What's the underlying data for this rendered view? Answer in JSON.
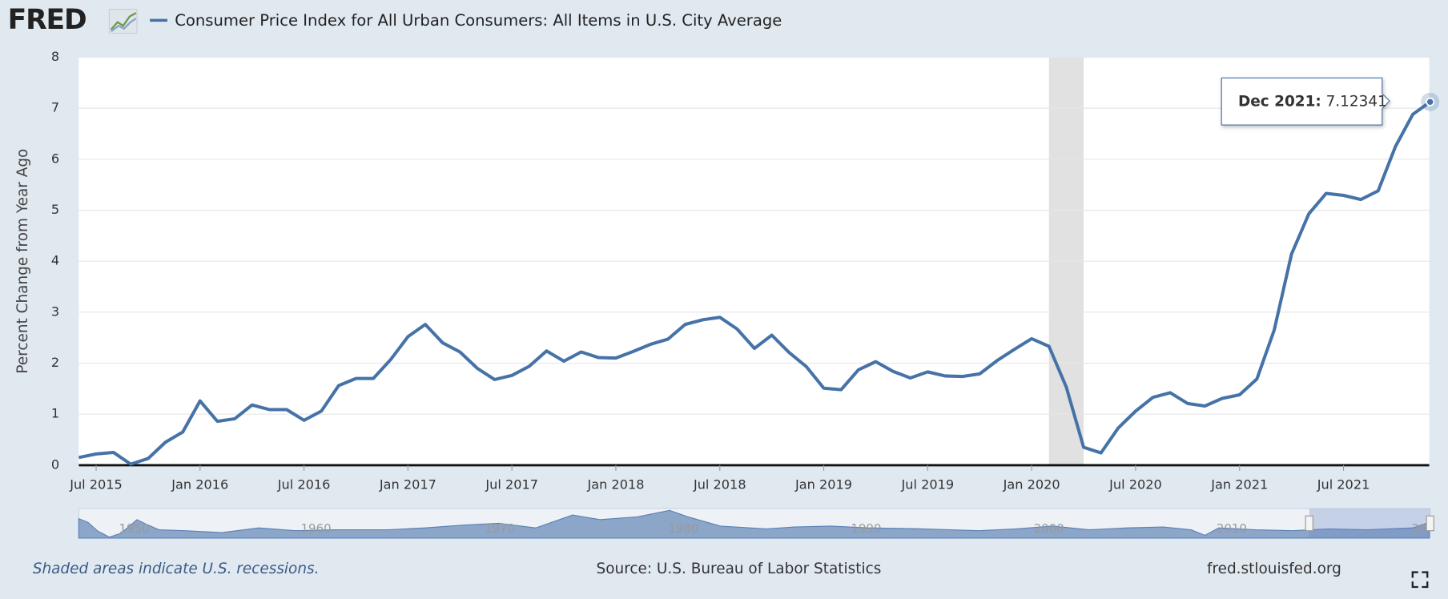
{
  "chart_data": {
    "type": "line",
    "title": "Consumer Price Index for All Urban Consumers: All Items in U.S. City Average",
    "y_label": "Percent Change from Year Ago",
    "logo": "FRED",
    "note": "Shaded areas indicate U.S. recessions.",
    "source": "Source: U.S. Bureau of Labor Statistics",
    "site": "fred.stlouisfed.org",
    "tooltip_label": "Dec 2021:",
    "x": [
      "2015-06",
      "2015-07",
      "2015-08",
      "2015-09",
      "2015-10",
      "2015-11",
      "2015-12",
      "2016-01",
      "2016-02",
      "2016-03",
      "2016-04",
      "2016-05",
      "2016-06",
      "2016-07",
      "2016-08",
      "2016-09",
      "2016-10",
      "2016-11",
      "2016-12",
      "2017-01",
      "2017-02",
      "2017-03",
      "2017-04",
      "2017-05",
      "2017-06",
      "2017-07",
      "2017-08",
      "2017-09",
      "2017-10",
      "2017-11",
      "2017-12",
      "2018-01",
      "2018-02",
      "2018-03",
      "2018-04",
      "2018-05",
      "2018-06",
      "2018-07",
      "2018-08",
      "2018-09",
      "2018-10",
      "2018-11",
      "2018-12",
      "2019-01",
      "2019-02",
      "2019-03",
      "2019-04",
      "2019-05",
      "2019-06",
      "2019-07",
      "2019-08",
      "2019-09",
      "2019-10",
      "2019-11",
      "2019-12",
      "2020-01",
      "2020-02",
      "2020-03",
      "2020-04",
      "2020-05",
      "2020-06",
      "2020-07",
      "2020-08",
      "2020-09",
      "2020-10",
      "2020-11",
      "2020-12",
      "2021-01",
      "2021-02",
      "2021-03",
      "2021-04",
      "2021-05",
      "2021-06",
      "2021-07",
      "2021-08",
      "2021-09",
      "2021-10",
      "2021-11",
      "2021-12"
    ],
    "series": [
      {
        "name": "Consumer Price Index for All Urban Consumers: All Items in U.S. City Average",
        "color": "#4572a7",
        "values": [
          0.15,
          0.22,
          0.25,
          0.02,
          0.13,
          0.45,
          0.65,
          1.26,
          0.86,
          0.91,
          1.18,
          1.09,
          1.09,
          0.88,
          1.06,
          1.56,
          1.7,
          1.7,
          2.07,
          2.52,
          2.76,
          2.4,
          2.22,
          1.9,
          1.68,
          1.76,
          1.94,
          2.24,
          2.04,
          2.22,
          2.11,
          2.1,
          2.23,
          2.37,
          2.47,
          2.76,
          2.85,
          2.9,
          2.67,
          2.29,
          2.55,
          2.21,
          1.93,
          1.51,
          1.48,
          1.87,
          2.03,
          1.84,
          1.71,
          1.83,
          1.75,
          1.74,
          1.79,
          2.05,
          2.27,
          2.48,
          2.33,
          1.53,
          0.35,
          0.24,
          0.73,
          1.06,
          1.33,
          1.42,
          1.21,
          1.16,
          1.31,
          1.38,
          1.69,
          2.65,
          4.14,
          4.93,
          5.33,
          5.29,
          5.21,
          5.38,
          6.25,
          6.88,
          7.12341
        ]
      }
    ],
    "xlim": [
      "2015-06",
      "2021-12"
    ],
    "xticks": [
      {
        "value": "2015-07",
        "label": "Jul 2015"
      },
      {
        "value": "2016-01",
        "label": "Jan 2016"
      },
      {
        "value": "2016-07",
        "label": "Jul 2016"
      },
      {
        "value": "2017-01",
        "label": "Jan 2017"
      },
      {
        "value": "2017-07",
        "label": "Jul 2017"
      },
      {
        "value": "2018-01",
        "label": "Jan 2018"
      },
      {
        "value": "2018-07",
        "label": "Jul 2018"
      },
      {
        "value": "2019-01",
        "label": "Jan 2019"
      },
      {
        "value": "2019-07",
        "label": "Jul 2019"
      },
      {
        "value": "2020-01",
        "label": "Jan 2020"
      },
      {
        "value": "2020-07",
        "label": "Jul 2020"
      },
      {
        "value": "2021-01",
        "label": "Jan 2021"
      },
      {
        "value": "2021-07",
        "label": "Jul 2021"
      }
    ],
    "ylim": [
      0,
      8
    ],
    "yticks": [
      0,
      1,
      2,
      3,
      4,
      5,
      6,
      7,
      8
    ],
    "grid": true,
    "recessions": [
      {
        "start": "2020-02",
        "end": "2020-04"
      }
    ],
    "navigator_labels": [
      "1950",
      "1960",
      "1970",
      "1980",
      "1990",
      "2000",
      "2010",
      "20"
    ]
  }
}
